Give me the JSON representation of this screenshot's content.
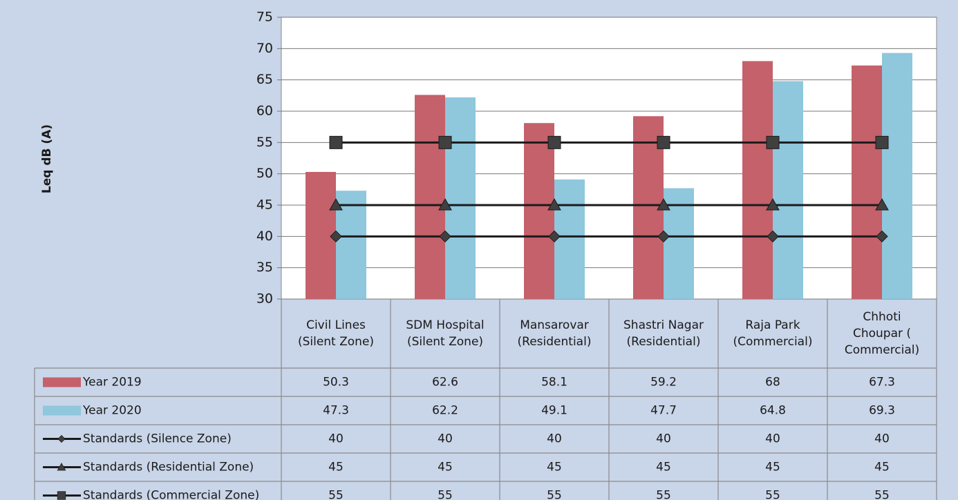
{
  "chart_data": {
    "type": "bar",
    "y_label": "Leq dB (A)",
    "categories": [
      "Civil Lines (Silent Zone)",
      "SDM Hospital (Silent Zone)",
      "Mansarovar (Residential)",
      "Shastri Nagar (Residential)",
      "Raja Park (Commercial)",
      "Chhoti Choupar ( Commercial)"
    ],
    "series": [
      {
        "name": "Year 2019",
        "type": "bar",
        "color": "#c4616a",
        "values": [
          50.3,
          62.6,
          58.1,
          59.2,
          68,
          67.3
        ]
      },
      {
        "name": "Year 2020",
        "type": "bar",
        "color": "#8fc7dd",
        "values": [
          47.3,
          62.2,
          49.1,
          47.7,
          64.8,
          69.3
        ]
      },
      {
        "name": "Standards (Silence Zone)",
        "type": "line",
        "marker": "diamond",
        "color": "#1a1a1a",
        "values": [
          40,
          40,
          40,
          40,
          40,
          40
        ]
      },
      {
        "name": "Standards (Residential Zone)",
        "type": "line",
        "marker": "triangle",
        "color": "#1a1a1a",
        "values": [
          45,
          45,
          45,
          45,
          45,
          45
        ]
      },
      {
        "name": "Standards (Commercial Zone)",
        "type": "line",
        "marker": "square",
        "color": "#1a1a1a",
        "values": [
          55,
          55,
          55,
          55,
          55,
          55
        ]
      }
    ],
    "ylim": [
      30,
      75
    ],
    "yticks": [
      30,
      35,
      40,
      45,
      50,
      55,
      60,
      65,
      70,
      75
    ],
    "grid": true,
    "data_table": true
  }
}
